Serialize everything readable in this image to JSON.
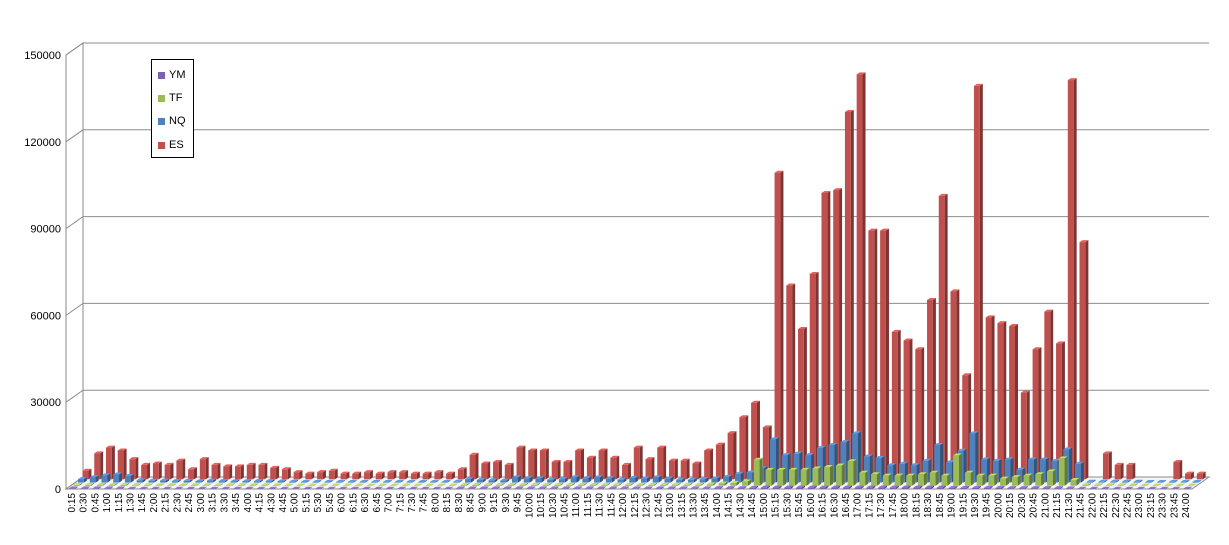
{
  "chart_data": {
    "type": "bar",
    "three_d": true,
    "grid": true,
    "legend_position": "top-left",
    "ylim": [
      0,
      150000
    ],
    "yticks": [
      "0",
      "30000",
      "60000",
      "90000",
      "120000",
      "150000"
    ],
    "categories": [
      "0:15",
      "0:30",
      "0:45",
      "1:00",
      "1:15",
      "1:30",
      "1:45",
      "2:00",
      "2:15",
      "2:30",
      "2:45",
      "3:00",
      "3:15",
      "3:30",
      "3:45",
      "4:00",
      "4:15",
      "4:30",
      "4:45",
      "5:00",
      "5:15",
      "5:30",
      "5:45",
      "6:00",
      "6:15",
      "6:30",
      "6:45",
      "7:00",
      "7:15",
      "7:30",
      "7:45",
      "8:00",
      "8:15",
      "8:30",
      "8:45",
      "9:00",
      "9:15",
      "9:30",
      "9:45",
      "10:00",
      "10:15",
      "10:30",
      "10:45",
      "11:00",
      "11:15",
      "11:30",
      "11:45",
      "12:00",
      "12:15",
      "12:30",
      "12:45",
      "13:00",
      "13:15",
      "13:30",
      "13:45",
      "14:00",
      "14:15",
      "14:30",
      "14:45",
      "15:00",
      "15:15",
      "15:30",
      "15:45",
      "16:00",
      "16:15",
      "16:30",
      "16:45",
      "17:00",
      "17:15",
      "17:30",
      "17:45",
      "18:00",
      "18:15",
      "18:30",
      "18:45",
      "19:00",
      "19:15",
      "19:30",
      "19:45",
      "20:00",
      "20:15",
      "20:30",
      "20:45",
      "21:00",
      "21:15",
      "21:30",
      "21:45",
      "22:00",
      "22:15",
      "22:30",
      "22:45",
      "23:00",
      "23:15",
      "23:30",
      "23:45",
      "24:00"
    ],
    "series": [
      {
        "name": "YM",
        "color": "#7f5fb0",
        "values": [
          200,
          200,
          200,
          200,
          200,
          100,
          100,
          100,
          100,
          100,
          100,
          100,
          100,
          100,
          100,
          100,
          100,
          100,
          100,
          100,
          100,
          100,
          100,
          100,
          100,
          100,
          100,
          100,
          100,
          100,
          100,
          100,
          100,
          200,
          200,
          200,
          200,
          200,
          200,
          200,
          200,
          200,
          200,
          200,
          200,
          200,
          200,
          200,
          200,
          200,
          200,
          200,
          200,
          200,
          200,
          300,
          300,
          300,
          400,
          500,
          500,
          500,
          500,
          500,
          500,
          500,
          500,
          500,
          500,
          500,
          500,
          500,
          500,
          500,
          500,
          400,
          400,
          400,
          400,
          400,
          300,
          300,
          300,
          300,
          300,
          200,
          100,
          100,
          100,
          100,
          100,
          100,
          100,
          100,
          100,
          100
        ]
      },
      {
        "name": "TF",
        "color": "#9bbb59",
        "values": [
          300,
          300,
          300,
          300,
          300,
          200,
          200,
          200,
          200,
          200,
          200,
          200,
          200,
          200,
          200,
          200,
          200,
          200,
          100,
          100,
          100,
          100,
          100,
          100,
          100,
          100,
          100,
          100,
          100,
          100,
          100,
          100,
          100,
          300,
          300,
          300,
          300,
          300,
          300,
          300,
          300,
          300,
          300,
          300,
          300,
          300,
          300,
          300,
          300,
          300,
          300,
          300,
          300,
          300,
          500,
          800,
          1000,
          1500,
          9000,
          5500,
          5500,
          5500,
          5500,
          6000,
          6500,
          7000,
          8500,
          4500,
          4000,
          3500,
          3500,
          3500,
          4000,
          4500,
          3500,
          10500,
          4500,
          3500,
          3500,
          2500,
          3000,
          3500,
          4000,
          5000,
          9500,
          2000,
          300,
          200,
          200,
          200,
          200,
          100,
          100,
          100,
          100,
          100
        ]
      },
      {
        "name": "NQ",
        "color": "#4f81bd",
        "values": [
          1200,
          1800,
          2500,
          2800,
          2300,
          800,
          600,
          700,
          500,
          600,
          400,
          700,
          500,
          400,
          400,
          500,
          500,
          400,
          300,
          200,
          200,
          200,
          200,
          200,
          200,
          200,
          200,
          200,
          200,
          200,
          200,
          200,
          300,
          1200,
          900,
          800,
          700,
          1800,
          1500,
          1500,
          1000,
          1200,
          1800,
          1500,
          1800,
          1500,
          1000,
          1600,
          1400,
          1800,
          1400,
          1000,
          1000,
          1200,
          1400,
          2000,
          3000,
          3500,
          5000,
          15000,
          9500,
          10000,
          9500,
          12000,
          13000,
          14000,
          17000,
          9000,
          8500,
          6000,
          6500,
          6000,
          7500,
          13000,
          7000,
          11000,
          17000,
          8000,
          7500,
          8000,
          4500,
          8000,
          8000,
          7500,
          11500,
          6500,
          300,
          300,
          300,
          300,
          300,
          200,
          200,
          200,
          200,
          200
        ]
      },
      {
        "name": "ES",
        "color": "#c0504d",
        "values": [
          3000,
          9000,
          11000,
          10000,
          7000,
          5000,
          5500,
          5000,
          6500,
          3500,
          7000,
          5000,
          4500,
          4500,
          5000,
          5000,
          4000,
          3500,
          2500,
          2000,
          2500,
          3000,
          2000,
          2000,
          2500,
          2000,
          2500,
          2500,
          2000,
          2000,
          2500,
          2000,
          3500,
          8500,
          5500,
          6000,
          5000,
          11000,
          10000,
          10000,
          6000,
          6000,
          10000,
          7500,
          10000,
          7500,
          5000,
          11000,
          7000,
          11000,
          6500,
          6500,
          5500,
          10000,
          12000,
          16000,
          21500,
          26500,
          18000,
          106000,
          67000,
          52000,
          71000,
          99000,
          100000,
          127000,
          140000,
          86000,
          86000,
          51000,
          48000,
          45000,
          62000,
          98000,
          65000,
          36000,
          136000,
          56000,
          54000,
          53000,
          30000,
          45000,
          58000,
          47000,
          138000,
          82000,
          0,
          9000,
          5000,
          5000,
          0,
          0,
          0,
          6000,
          2000,
          2000
        ]
      }
    ]
  }
}
